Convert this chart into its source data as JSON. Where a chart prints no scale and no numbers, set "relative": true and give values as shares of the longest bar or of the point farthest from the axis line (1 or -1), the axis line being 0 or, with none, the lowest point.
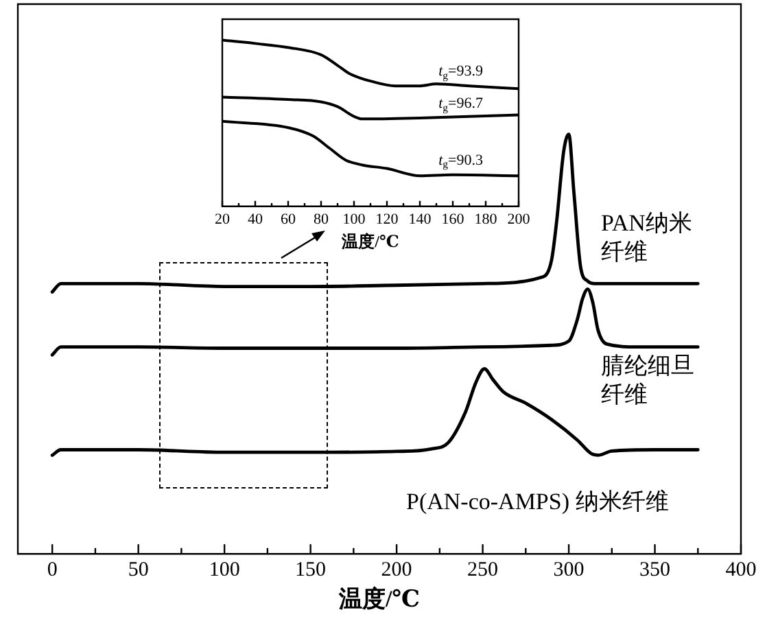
{
  "chart_data": [
    {
      "type": "line",
      "xlabel": "温度/℃",
      "relative": true,
      "legend": false,
      "marker": "none",
      "line_style": "solid",
      "xlim": [
        -20,
        400
      ],
      "xticks": [
        0,
        {
          "value": 25,
          "label": null
        },
        50,
        {
          "value": 75,
          "label": null
        },
        100,
        {
          "value": 125,
          "label": null
        },
        150,
        {
          "value": 175,
          "label": null
        },
        200,
        {
          "value": 225,
          "label": null
        },
        250,
        {
          "value": 275,
          "label": null
        },
        300,
        {
          "value": 325,
          "label": null
        },
        350,
        {
          "value": 375,
          "label": null
        },
        400
      ],
      "series": [
        {
          "name": "PAN纳米纤维",
          "color": "#000000",
          "x": [
            0,
            5,
            50,
            100,
            150,
            200,
            250,
            285,
            290,
            293,
            297,
            300,
            303,
            307,
            311,
            315,
            340,
            375
          ],
          "values": [
            0.624,
            0.644,
            0.644,
            0.637,
            0.637,
            0.64,
            0.644,
            0.66,
            0.7,
            0.794,
            0.958,
            1.0,
            0.86,
            0.68,
            0.65,
            0.644,
            0.644,
            0.644
          ]
        },
        {
          "name": "腈纶细旦纤维",
          "color": "#000000",
          "x": [
            0,
            5,
            50,
            100,
            150,
            200,
            250,
            290,
            300,
            305,
            308,
            311,
            314,
            317,
            322,
            340,
            375
          ],
          "values": [
            0.474,
            0.493,
            0.493,
            0.49,
            0.49,
            0.49,
            0.493,
            0.497,
            0.507,
            0.559,
            0.608,
            0.631,
            0.598,
            0.533,
            0.5,
            0.493,
            0.493
          ]
        },
        {
          "name": "P(AN-co-AMPS) 纳米纤维",
          "color": "#000000",
          "x": [
            0,
            5,
            50,
            100,
            150,
            200,
            220,
            230,
            240,
            246,
            251,
            256,
            262,
            275,
            290,
            305,
            313,
            317,
            325,
            350,
            375
          ],
          "values": [
            0.235,
            0.248,
            0.248,
            0.242,
            0.242,
            0.244,
            0.25,
            0.265,
            0.338,
            0.408,
            0.441,
            0.415,
            0.386,
            0.359,
            0.32,
            0.271,
            0.239,
            0.235,
            0.245,
            0.248,
            0.248
          ]
        }
      ]
    },
    {
      "type": "line",
      "xlabel": "温度/℃",
      "relative": true,
      "legend": false,
      "marker": "none",
      "line_style": "solid",
      "xlim": [
        20,
        200
      ],
      "xticks": [
        20,
        {
          "value": 30,
          "label": null
        },
        40,
        {
          "value": 50,
          "label": null
        },
        60,
        {
          "value": 70,
          "label": null
        },
        80,
        {
          "value": 90,
          "label": null
        },
        100,
        {
          "value": 110,
          "label": null
        },
        120,
        {
          "value": 130,
          "label": null
        },
        140,
        {
          "value": 150,
          "label": null
        },
        160,
        {
          "value": 170,
          "label": null
        },
        180,
        {
          "value": 190,
          "label": null
        },
        200
      ],
      "annotations": [
        "t$_{g}$=93.9",
        "t$_{g}$=96.7",
        "t$_{g}$=90.3"
      ],
      "series": [
        {
          "color": "#000000",
          "x": [
            20,
            40,
            60,
            80,
            90,
            97,
            103,
            110,
            125,
            140,
            150,
            170,
            200
          ],
          "values": [
            1.0,
            0.98,
            0.956,
            0.912,
            0.848,
            0.8,
            0.775,
            0.754,
            0.725,
            0.725,
            0.737,
            0.725,
            0.708
          ]
        },
        {
          "color": "#000000",
          "x": [
            20,
            60,
            80,
            90,
            100,
            105,
            140,
            200
          ],
          "values": [
            0.658,
            0.643,
            0.629,
            0.6,
            0.541,
            0.526,
            0.532,
            0.55
          ]
        },
        {
          "color": "#000000",
          "x": [
            20,
            60,
            75,
            85,
            95,
            105,
            120,
            140,
            160,
            200
          ],
          "values": [
            0.512,
            0.474,
            0.424,
            0.351,
            0.278,
            0.249,
            0.228,
            0.184,
            0.19,
            0.184
          ]
        }
      ]
    }
  ]
}
